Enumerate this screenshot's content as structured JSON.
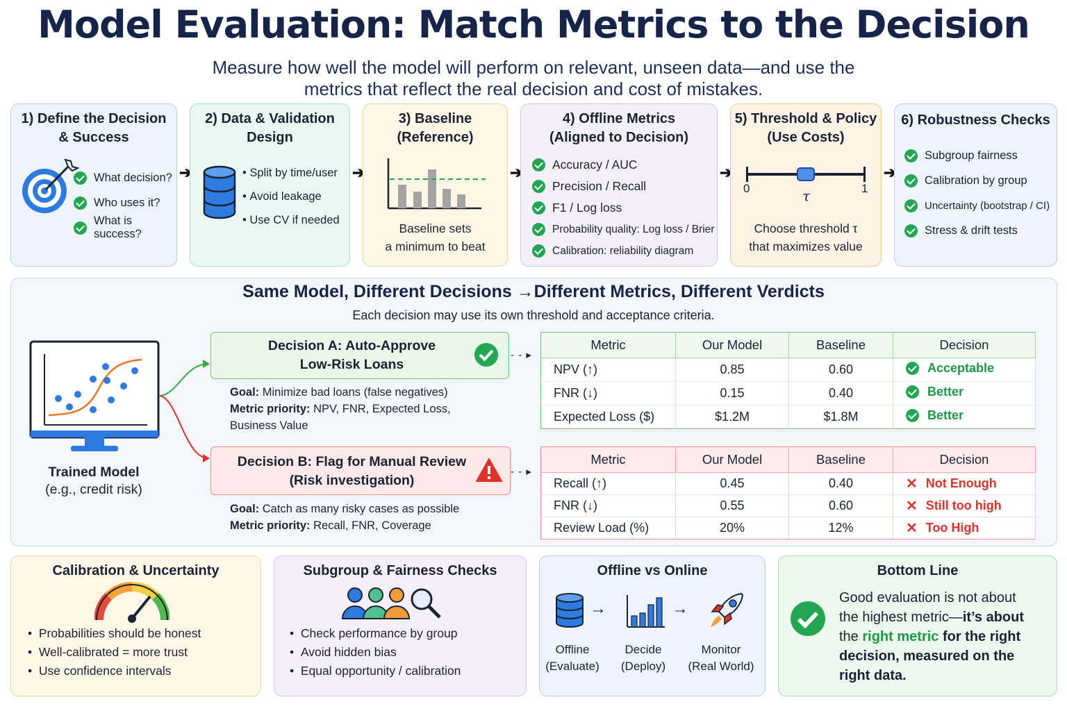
{
  "header": {
    "title": "Model Evaluation: Match Metrics to the Decision",
    "subtitle_line1": "Measure how well the model will perform on relevant, unseen data—and use the",
    "subtitle_line2": "metrics that reflect the real decision and cost of mistakes."
  },
  "steps": [
    {
      "title_line1": "1) Define the Decision",
      "title_line2": "& Success",
      "items": [
        "What decision?",
        "Who uses it?",
        "What is success?"
      ],
      "icon": "target-icon"
    },
    {
      "title_line1": "2) Data & Validation",
      "title_line2": "Design",
      "items": [
        "Split by time/user",
        "Avoid leakage",
        "Use CV if needed"
      ],
      "icon": "database-icon"
    },
    {
      "title_line1": "3) Baseline",
      "title_line2": "(Reference)",
      "caption_line1": "Baseline sets",
      "caption_line2": "a minimum to beat",
      "icon": "bar-chart-icon"
    },
    {
      "title_line1": "4) Offline Metrics",
      "title_line2": "(Aligned to Decision)",
      "items": [
        "Accuracy / AUC",
        "Precision / Recall",
        "F1 / Log loss",
        "Probability quality: Log loss / Brier",
        "Calibration: reliability diagram"
      ]
    },
    {
      "title_line1": "5) Threshold & Policy",
      "title_line2": "(Use Costs)",
      "slider_min": "0",
      "slider_max": "1",
      "slider_symbol": "τ",
      "caption_line1": "Choose threshold τ",
      "caption_line2": "that maximizes value",
      "threshold_value": 0.5
    },
    {
      "title_line1": "6) Robustness Checks",
      "items": [
        "Subgroup fairness",
        "Calibration by group",
        "Uncertainty (bootstrap / CI)",
        "Stress & drift tests"
      ]
    }
  ],
  "middle": {
    "title": "Same Model, Different Decisions →Different Metrics, Different Verdicts",
    "subtitle": "Each decision may use its own threshold and acceptance criteria.",
    "model_label_line1": "Trained Model",
    "model_label_line2": "(e.g., credit risk)",
    "decision_a": {
      "title_line1": "Decision A: Auto-Approve",
      "title_line2": "Low-Risk Loans",
      "goal_label": "Goal:",
      "goal": "Minimize bad loans (false negatives)",
      "priority_label": "Metric priority:",
      "priority": "NPV, FNR, Expected Loss,",
      "priority_line2": "Business Value"
    },
    "decision_b": {
      "title_line1": "Decision B: Flag for Manual Review",
      "title_line2": "(Risk investigation)",
      "goal_label": "Goal:",
      "goal": "Catch as many risky cases as possible",
      "priority_label": "Metric priority:",
      "priority": "Recall, FNR, Coverage"
    },
    "table_headers": [
      "Metric",
      "Our Model",
      "Baseline",
      "Decision"
    ],
    "table_a": [
      {
        "metric": "NPV (↑)",
        "model": "0.85",
        "baseline": "0.60",
        "decision": "Acceptable"
      },
      {
        "metric": "FNR (↓)",
        "model": "0.15",
        "baseline": "0.40",
        "decision": "Better"
      },
      {
        "metric": "Expected Loss ($)",
        "model": "$1.2M",
        "baseline": "$1.8M",
        "decision": "Better"
      }
    ],
    "table_b": [
      {
        "metric": "Recall (↑)",
        "model": "0.45",
        "baseline": "0.40",
        "decision": "Not Enough"
      },
      {
        "metric": "FNR (↓)",
        "model": "0.55",
        "baseline": "0.60",
        "decision": "Still too high"
      },
      {
        "metric": "Review Load (%)",
        "model": "20%",
        "baseline": "12%",
        "decision": "Too High"
      }
    ]
  },
  "bottom": {
    "calibration": {
      "title": "Calibration & Uncertainty",
      "items": [
        "Probabilities should be honest",
        "Well-calibrated = more trust",
        "Use confidence intervals"
      ],
      "icon": "gauge-icon"
    },
    "fairness": {
      "title": "Subgroup & Fairness Checks",
      "items": [
        "Check performance by group",
        "Avoid hidden bias",
        "Equal opportunity / calibration"
      ],
      "icon": "people-magnifier-icon"
    },
    "online": {
      "title": "Offline vs Online",
      "stages": [
        {
          "line1": "Offline",
          "line2": "(Evaluate)",
          "icon": "database-icon"
        },
        {
          "line1": "Decide",
          "line2": "(Deploy)",
          "icon": "bar-chart-icon"
        },
        {
          "line1": "Monitor",
          "line2": "(Real World)",
          "icon": "rocket-icon"
        }
      ]
    },
    "bottom_line": {
      "title": "Bottom Line",
      "t1": "Good evaluation is not about",
      "t2": "the highest metric—",
      "t3": "it’s about",
      "t4": "the ",
      "t5": "right metric",
      "t6": " for the right",
      "t7": "decision, measured on the",
      "t8": "right data."
    }
  },
  "colors": {
    "navy": "#16244a",
    "green": "#22a652",
    "red": "#e0322b",
    "blue": "#2d7be0",
    "orange": "#f0731f"
  }
}
